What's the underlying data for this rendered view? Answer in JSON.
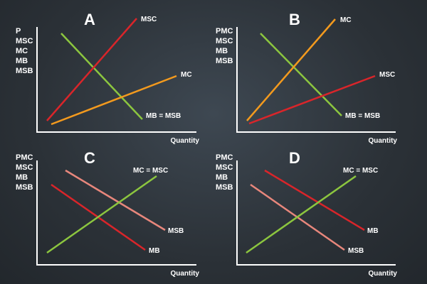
{
  "colors": {
    "red": "#d9252a",
    "orange": "#f39a1e",
    "green": "#8cc63f",
    "pink": "#e8877c",
    "axis": "#ffffff"
  },
  "panels": [
    {
      "letter": "A",
      "ylabels": [
        "P",
        "MSC",
        "MC",
        "MB",
        "MSB"
      ],
      "xlabel": "Quantity",
      "curves": [
        {
          "label": "MSC",
          "color": "red"
        },
        {
          "label": "MC",
          "color": "orange"
        },
        {
          "label": "MB = MSB",
          "color": "green"
        }
      ]
    },
    {
      "letter": "B",
      "ylabels": [
        "PMC",
        "MSC",
        "MB",
        "MSB"
      ],
      "xlabel": "Quantity",
      "curves": [
        {
          "label": "MC",
          "color": "orange"
        },
        {
          "label": "MSC",
          "color": "red"
        },
        {
          "label": "MB = MSB",
          "color": "green"
        }
      ]
    },
    {
      "letter": "C",
      "ylabels": [
        "PMC",
        "MSC",
        "MB",
        "MSB"
      ],
      "xlabel": "Quantity",
      "curves": [
        {
          "label": "MC = MSC",
          "color": "green"
        },
        {
          "label": "MSB",
          "color": "pink"
        },
        {
          "label": "MB",
          "color": "red"
        }
      ]
    },
    {
      "letter": "D",
      "ylabels": [
        "PMC",
        "MSC",
        "MB",
        "MSB"
      ],
      "xlabel": "Quantity",
      "curves": [
        {
          "label": "MC = MSC",
          "color": "green"
        },
        {
          "label": "MB",
          "color": "red"
        },
        {
          "label": "MSB",
          "color": "pink"
        }
      ]
    }
  ]
}
